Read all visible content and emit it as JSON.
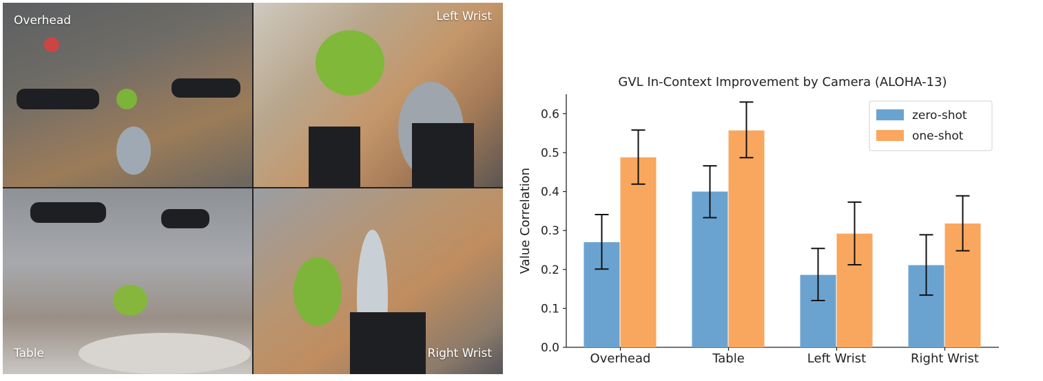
{
  "cameras": [
    {
      "label": "Overhead"
    },
    {
      "label": "Left Wrist"
    },
    {
      "label": "Table"
    },
    {
      "label": "Right Wrist"
    }
  ],
  "chart_data": {
    "type": "bar",
    "title": "GVL In-Context Improvement by Camera (ALOHA-13)",
    "xlabel": "",
    "ylabel": "Value Correlation",
    "categories": [
      "Overhead",
      "Table",
      "Left Wrist",
      "Right Wrist"
    ],
    "series": [
      {
        "name": "zero-shot",
        "color": "#6ba3d0",
        "values": [
          0.27,
          0.4,
          0.186,
          0.211
        ],
        "err_low": [
          0.201,
          0.333,
          0.12,
          0.134
        ],
        "err_high": [
          0.341,
          0.466,
          0.254,
          0.289
        ]
      },
      {
        "name": "one-shot",
        "color": "#f9a75e",
        "values": [
          0.488,
          0.557,
          0.292,
          0.318
        ],
        "err_low": [
          0.419,
          0.487,
          0.212,
          0.248
        ],
        "err_high": [
          0.558,
          0.63,
          0.373,
          0.389
        ]
      }
    ],
    "ylim": [
      0.0,
      0.65
    ],
    "yticks": [
      0.0,
      0.1,
      0.2,
      0.3,
      0.4,
      0.5,
      0.6
    ],
    "legend": "top-right",
    "grid": false
  }
}
